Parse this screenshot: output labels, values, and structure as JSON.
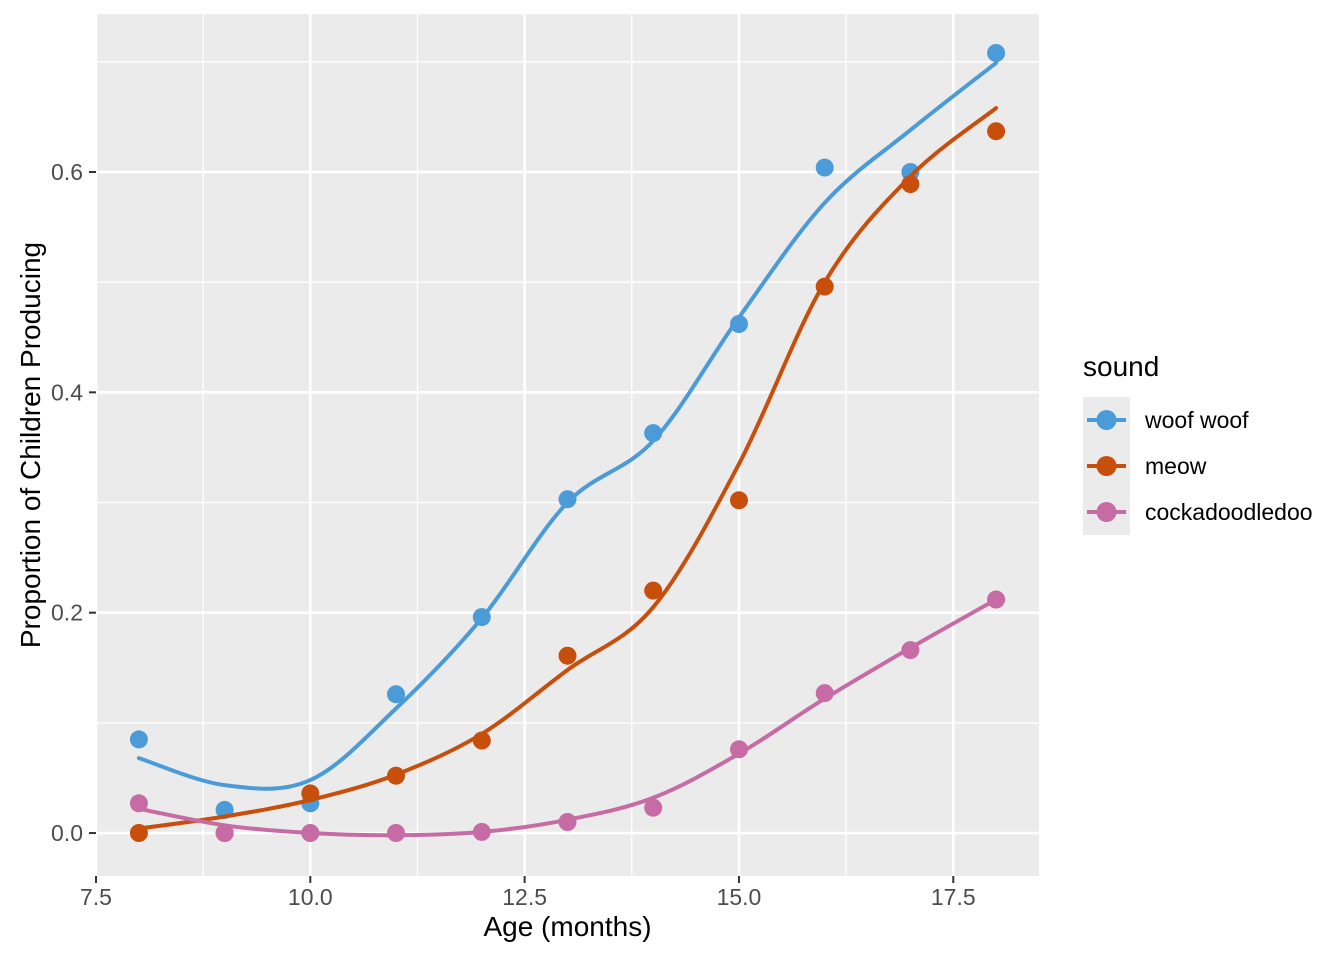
{
  "chart_data": {
    "type": "scatter",
    "title": "",
    "xlabel": "Age (months)",
    "ylabel": "Proportion of Children Producing",
    "legend_title": "sound",
    "legend_position": "right",
    "grid": true,
    "panel_bg": "#EBEBEB",
    "grid_color": "#FFFFFF",
    "tick_mark_color": "#333333",
    "tick_label_color": "#4D4D4D",
    "xlim": [
      7.5,
      18.5
    ],
    "ylim": [
      -0.039,
      0.7434
    ],
    "x_ticks": [
      7.5,
      10,
      12.5,
      15,
      17.5
    ],
    "x_tick_labels": [
      "7.5",
      "10.0",
      "12.5",
      "15.0",
      "17.5"
    ],
    "x_minor_ticks": [
      8.75,
      11.25,
      13.75,
      16.25
    ],
    "y_ticks": [
      0,
      0.2,
      0.4,
      0.6
    ],
    "y_tick_labels": [
      "0.0",
      "0.2",
      "0.4",
      "0.6"
    ],
    "y_minor_ticks": [
      0.1,
      0.3,
      0.5,
      0.7
    ],
    "x": [
      8,
      9,
      10,
      11,
      12,
      13,
      14,
      15,
      16,
      17,
      18
    ],
    "series": [
      {
        "name": "woof woof",
        "color": "#4A9BD8",
        "values": [
          0.085,
          0.021,
          0.027,
          0.126,
          0.196,
          0.303,
          0.363,
          0.462,
          0.604,
          0.6,
          0.708
        ],
        "smooth": [
          [
            8,
            0.068
          ],
          [
            9,
            0.0435
          ],
          [
            10,
            0.048
          ],
          [
            11,
            0.113
          ],
          [
            12,
            0.195
          ],
          [
            13,
            0.3
          ],
          [
            14,
            0.356
          ],
          [
            15,
            0.468
          ],
          [
            16,
            0.572
          ],
          [
            17,
            0.638
          ],
          [
            18,
            0.699
          ]
        ]
      },
      {
        "name": "meow",
        "color": "#C84E0C",
        "values": [
          0.0,
          0.0,
          0.036,
          0.052,
          0.084,
          0.161,
          0.22,
          0.302,
          0.496,
          0.589,
          0.637
        ],
        "smooth": [
          [
            8,
            0.004
          ],
          [
            9,
            0.015
          ],
          [
            10,
            0.03
          ],
          [
            11,
            0.053
          ],
          [
            12,
            0.09
          ],
          [
            13,
            0.148
          ],
          [
            14,
            0.205
          ],
          [
            15,
            0.335
          ],
          [
            16,
            0.5
          ],
          [
            17,
            0.596
          ],
          [
            18,
            0.658
          ]
        ]
      },
      {
        "name": "cockadoodledoo",
        "color": "#C66BA3",
        "values": [
          0.027,
          0.0,
          0.0,
          0.0,
          0.001,
          0.01,
          0.023,
          0.076,
          0.127,
          0.166,
          0.212
        ],
        "smooth": [
          [
            8,
            0.022
          ],
          [
            9,
            0.007
          ],
          [
            10,
            0.0
          ],
          [
            11,
            -0.002
          ],
          [
            12,
            0.001
          ],
          [
            13,
            0.012
          ],
          [
            14,
            0.032
          ],
          [
            15,
            0.072
          ],
          [
            16,
            0.122
          ],
          [
            17,
            0.168
          ],
          [
            18,
            0.212
          ]
        ]
      }
    ]
  }
}
